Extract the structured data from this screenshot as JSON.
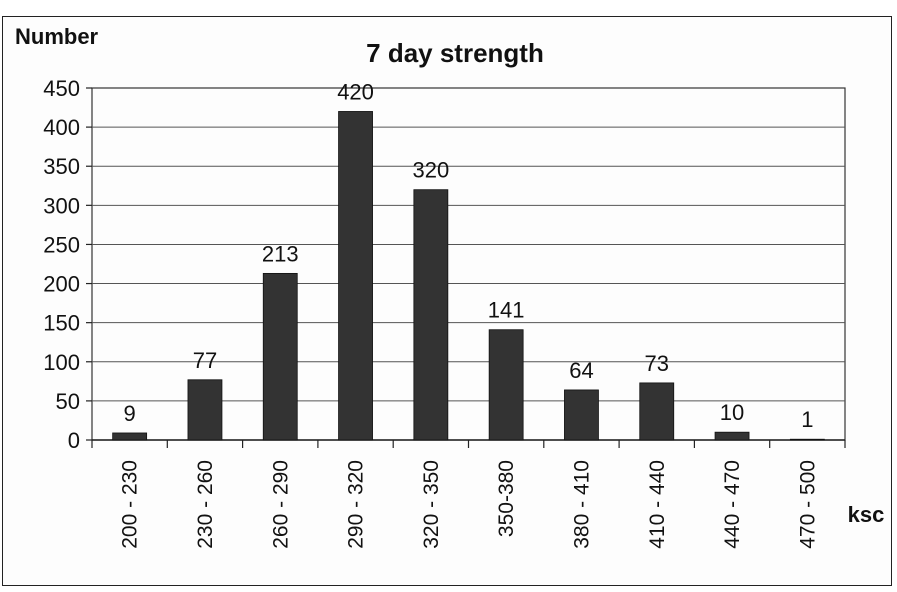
{
  "chart_data": {
    "type": "bar",
    "title": "7 day strength",
    "ylabel": "Number",
    "xlabel": "ksc",
    "categories": [
      "200 - 230",
      "230 - 260",
      "260 - 290",
      "290 - 320",
      "320 - 350",
      "350-380",
      "380 - 410",
      "410 - 440",
      "440 - 470",
      "470 - 500"
    ],
    "values": [
      9,
      77,
      213,
      420,
      320,
      141,
      64,
      73,
      10,
      1
    ],
    "data_labels": [
      "9",
      "77",
      "213",
      "420",
      "320",
      "141",
      "64",
      "73",
      "10",
      "1"
    ],
    "ylim": [
      0,
      450
    ],
    "yticks": [
      0,
      50,
      100,
      150,
      200,
      250,
      300,
      350,
      400,
      450
    ],
    "grid": true,
    "legend": "none",
    "bar_color": "#333333"
  }
}
